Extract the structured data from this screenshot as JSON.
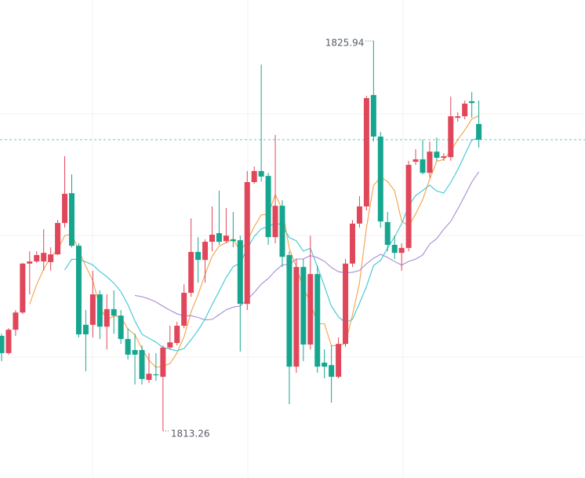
{
  "chart_data": {
    "type": "candlestick",
    "up_color": "#e0475b",
    "down_color": "#16a68f",
    "ma_colors": [
      "#f5a046",
      "#3cc6d4",
      "#a98ad6"
    ],
    "ylim": [
      1811.73,
      1827.27
    ],
    "max_label": "1825.94",
    "min_label": "1813.26",
    "open": [
      1816.35,
      1815.79,
      1816.55,
      1817.11,
      1818.7,
      1818.77,
      1818.77,
      1818.75,
      1819.0,
      1820.02,
      1820.99,
      1819.28,
      1816.71,
      1816.71,
      1817.7,
      1816.65,
      1817.22,
      1817.01,
      1816.25,
      1815.89,
      1815.89,
      1814.92,
      1815.1,
      1815.02,
      1815.97,
      1816.12,
      1816.68,
      1817.75,
      1819.08,
      1818.82,
      1819.41,
      1819.69,
      1819.43,
      1819.49,
      1819.46,
      1817.39,
      1821.35,
      1821.71,
      1821.55,
      1819.56,
      1820.58,
      1818.98,
      1815.35,
      1818.59,
      1816.07,
      1818.36,
      1815.48,
      1815.4,
      1815.02,
      1816.09,
      1818.7,
      1820.0,
      1820.56,
      1824.18,
      1822.83,
      1820.05,
      1819.31,
      1819.05,
      1819.21,
      1822.01,
      1822.09,
      1821.65,
      1822.34,
      1822.14,
      1822.16,
      1823.44,
      1823.49,
      1823.98,
      1823.24
    ],
    "high": [
      1816.42,
      1816.6,
      1817.19,
      1818.72,
      1819.1,
      1819.1,
      1819.82,
      1819.23,
      1820.12,
      1822.19,
      1821.6,
      1819.36,
      1817.19,
      1818.47,
      1817.83,
      1817.7,
      1817.83,
      1817.19,
      1816.6,
      1816.42,
      1816.04,
      1815.79,
      1815.79,
      1816.04,
      1816.68,
      1816.81,
      1818.03,
      1820.17,
      1819.56,
      1819.49,
      1820.56,
      1821.07,
      1820.51,
      1820.38,
      1819.61,
      1821.71,
      1821.86,
      1825.17,
      1821.65,
      1822.88,
      1820.76,
      1819.1,
      1818.85,
      1818.85,
      1819.61,
      1818.64,
      1815.91,
      1816.04,
      1816.3,
      1818.85,
      1820.12,
      1820.89,
      1824.15,
      1825.94,
      1822.98,
      1820.38,
      1819.61,
      1819.36,
      1822.04,
      1822.42,
      1822.73,
      1822.67,
      1822.8,
      1822.29,
      1824.13,
      1823.62,
      1824.0,
      1824.28,
      1824.0
    ],
    "low": [
      1815.53,
      1815.74,
      1816.35,
      1817.06,
      1817.7,
      1818.72,
      1818.47,
      1818.47,
      1818.98,
      1819.87,
      1819.23,
      1816.3,
      1815.2,
      1816.3,
      1816.25,
      1815.91,
      1816.42,
      1816.09,
      1815.58,
      1814.77,
      1814.77,
      1814.82,
      1814.89,
      1813.26,
      1815.91,
      1816.04,
      1816.6,
      1817.62,
      1818.08,
      1818.08,
      1819.1,
      1819.31,
      1819.36,
      1819.23,
      1815.84,
      1817.19,
      1821.3,
      1821.37,
      1819.31,
      1819.36,
      1818.59,
      1814.13,
      1815.15,
      1815.53,
      1815.91,
      1815.15,
      1814.97,
      1814.18,
      1814.97,
      1815.99,
      1818.59,
      1819.87,
      1820.43,
      1822.67,
      1819.87,
      1819.1,
      1818.85,
      1818.47,
      1819.1,
      1821.91,
      1821.6,
      1821.5,
      1822.04,
      1822.04,
      1822.04,
      1823.31,
      1823.39,
      1823.44,
      1822.47
    ],
    "close": [
      1815.79,
      1816.55,
      1817.11,
      1818.7,
      1818.77,
      1818.98,
      1819.05,
      1819.0,
      1820.02,
      1820.97,
      1819.28,
      1816.4,
      1816.4,
      1817.7,
      1816.65,
      1817.22,
      1817.01,
      1816.25,
      1815.74,
      1815.74,
      1814.95,
      1815.12,
      1815.07,
      1815.97,
      1816.14,
      1816.68,
      1817.75,
      1819.08,
      1818.82,
      1819.41,
      1819.64,
      1819.41,
      1819.61,
      1819.43,
      1817.39,
      1821.35,
      1821.71,
      1821.53,
      1819.56,
      1820.58,
      1818.92,
      1815.35,
      1818.59,
      1816.07,
      1818.36,
      1815.35,
      1815.35,
      1815.02,
      1816.09,
      1818.7,
      1820.0,
      1820.56,
      1824.08,
      1822.83,
      1820.07,
      1819.31,
      1819.05,
      1819.21,
      1821.91,
      1822.09,
      1821.65,
      1822.34,
      1822.14,
      1822.19,
      1823.49,
      1823.49,
      1823.9,
      1823.92,
      1822.73
    ]
  }
}
